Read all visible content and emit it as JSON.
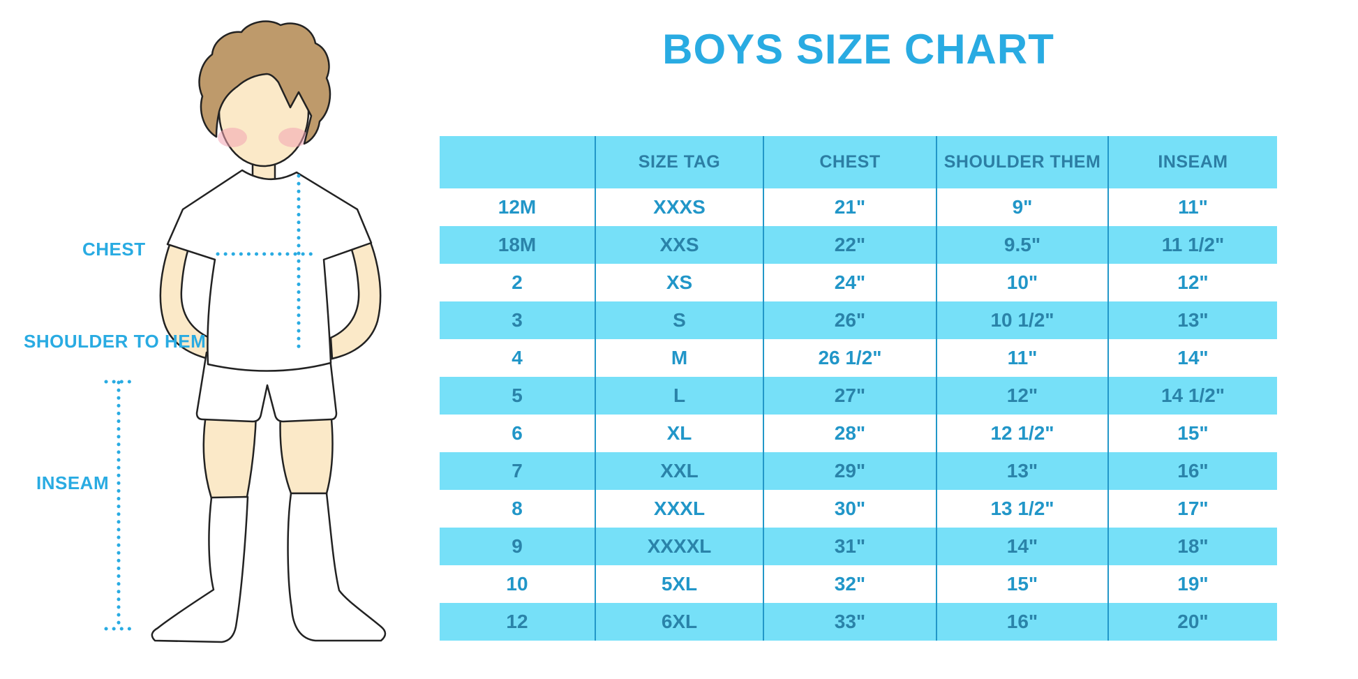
{
  "page": {
    "title": "BOYS SIZE CHART"
  },
  "theme": {
    "accent_blue": "#29ABE2",
    "band_cyan": "#76E0F8",
    "divider_blue": "#2297C8",
    "header_text": "#2C7EA4",
    "row_text_white": "#2196C8",
    "row_text_band": "#2A83A9",
    "skin": "#FBE9C8",
    "hair": "#BE9A6B",
    "blush": "#F2A4B2",
    "outline": "#222222"
  },
  "figure": {
    "chest_label": "CHEST",
    "shoulder_to_hem_label": "SHOULDER TO HEM",
    "inseam_label": "INSEAM",
    "illustration": "boy-in-white-tee-shorts-and-knee-socks-with-dotted-measurement-lines"
  },
  "chart_data": {
    "type": "table",
    "title": "BOYS SIZE CHART",
    "columns": [
      "",
      "SIZE TAG",
      "CHEST",
      "SHOULDER THEM",
      "INSEAM"
    ],
    "rows": [
      [
        "12M",
        "XXXS",
        "21\"",
        "9\"",
        "11\""
      ],
      [
        "18M",
        "XXS",
        "22\"",
        "9.5\"",
        "11 1/2\""
      ],
      [
        "2",
        "XS",
        "24\"",
        "10\"",
        "12\""
      ],
      [
        "3",
        "S",
        "26\"",
        "10 1/2\"",
        "13\""
      ],
      [
        "4",
        "M",
        "26 1/2\"",
        "11\"",
        "14\""
      ],
      [
        "5",
        "L",
        "27\"",
        "12\"",
        "14 1/2\""
      ],
      [
        "6",
        "XL",
        "28\"",
        "12 1/2\"",
        "15\""
      ],
      [
        "7",
        "XXL",
        "29\"",
        "13\"",
        "16\""
      ],
      [
        "8",
        "XXXL",
        "30\"",
        "13 1/2\"",
        "17\""
      ],
      [
        "9",
        "XXXXL",
        "31\"",
        "14\"",
        "18\""
      ],
      [
        "10",
        "5XL",
        "32\"",
        "15\"",
        "19\""
      ],
      [
        "12",
        "6XL",
        "33\"",
        "16\"",
        "20\""
      ]
    ],
    "layout": {
      "alternating_rows": "white/cyan starting white",
      "column_dividers": true,
      "horizontal_gridlines": false
    }
  }
}
